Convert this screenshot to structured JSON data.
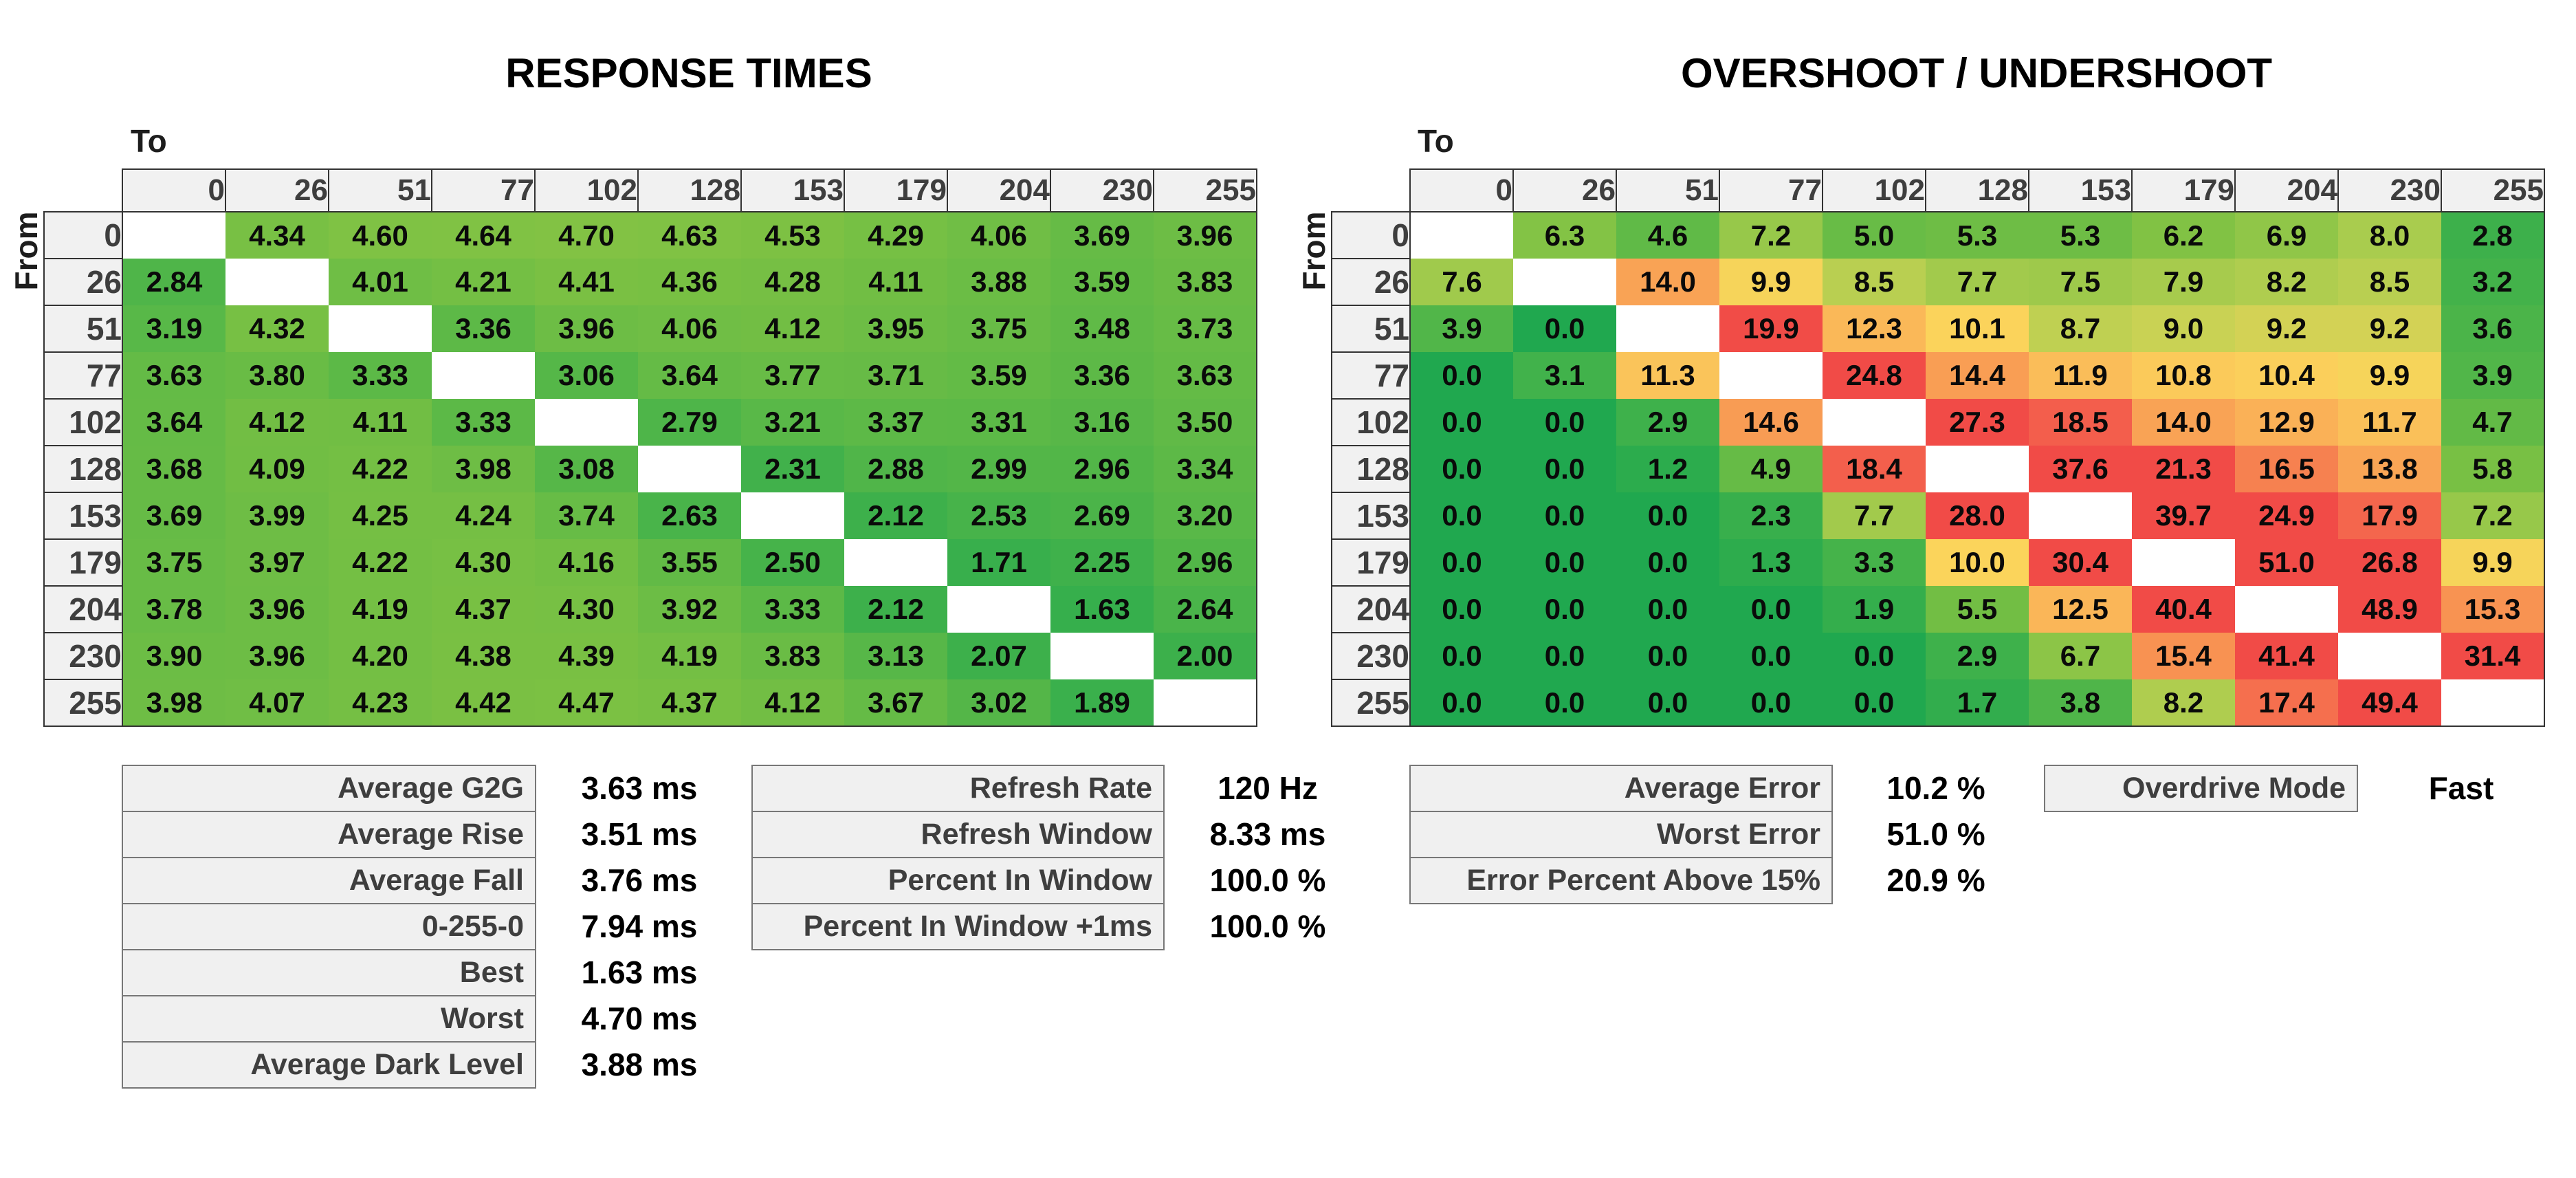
{
  "chart_data": [
    {
      "type": "heatmap",
      "title": "RESPONSE TIMES",
      "to_label": "To",
      "from_label": "From",
      "unit": "ms",
      "levels": [
        "0",
        "26",
        "51",
        "77",
        "102",
        "128",
        "153",
        "179",
        "204",
        "230",
        "255"
      ],
      "values": [
        [
          null,
          "4.34",
          "4.60",
          "4.64",
          "4.70",
          "4.63",
          "4.53",
          "4.29",
          "4.06",
          "3.69",
          "3.96"
        ],
        [
          "2.84",
          null,
          "4.01",
          "4.21",
          "4.41",
          "4.36",
          "4.28",
          "4.11",
          "3.88",
          "3.59",
          "3.83"
        ],
        [
          "3.19",
          "4.32",
          null,
          "3.36",
          "3.96",
          "4.06",
          "4.12",
          "3.95",
          "3.75",
          "3.48",
          "3.73"
        ],
        [
          "3.63",
          "3.80",
          "3.33",
          null,
          "3.06",
          "3.64",
          "3.77",
          "3.71",
          "3.59",
          "3.36",
          "3.63"
        ],
        [
          "3.64",
          "4.12",
          "4.11",
          "3.33",
          null,
          "2.79",
          "3.21",
          "3.37",
          "3.31",
          "3.16",
          "3.50"
        ],
        [
          "3.68",
          "4.09",
          "4.22",
          "3.98",
          "3.08",
          null,
          "2.31",
          "2.88",
          "2.99",
          "2.96",
          "3.34"
        ],
        [
          "3.69",
          "3.99",
          "4.25",
          "4.24",
          "3.74",
          "2.63",
          null,
          "2.12",
          "2.53",
          "2.69",
          "3.20"
        ],
        [
          "3.75",
          "3.97",
          "4.22",
          "4.30",
          "4.16",
          "3.55",
          "2.50",
          null,
          "1.71",
          "2.25",
          "2.96"
        ],
        [
          "3.78",
          "3.96",
          "4.19",
          "4.37",
          "4.30",
          "3.92",
          "3.33",
          "2.12",
          null,
          "1.63",
          "2.64"
        ],
        [
          "3.90",
          "3.96",
          "4.20",
          "4.38",
          "4.39",
          "4.19",
          "3.83",
          "3.13",
          "2.07",
          null,
          "2.00"
        ],
        [
          "3.98",
          "4.07",
          "4.23",
          "4.42",
          "4.47",
          "4.37",
          "4.12",
          "3.67",
          "3.02",
          "1.89",
          null
        ]
      ],
      "color_scale": {
        "domain_max": 15,
        "stops": [
          [
            0.0,
            "#20A84F"
          ],
          [
            0.15,
            "#3FB14B"
          ],
          [
            0.3,
            "#7CC143"
          ],
          [
            0.4,
            "#A9CC4E"
          ],
          [
            0.45,
            "#C9D254"
          ],
          [
            0.5,
            "#FBD45B"
          ],
          [
            0.6,
            "#FABC59"
          ],
          [
            0.7,
            "#F9A355"
          ],
          [
            0.8,
            "#F78A51"
          ],
          [
            0.9,
            "#F4644D"
          ],
          [
            1.0,
            "#F14B47"
          ]
        ]
      }
    },
    {
      "type": "heatmap",
      "title": "OVERSHOOT / UNDERSHOOT",
      "to_label": "To",
      "from_label": "From",
      "unit": "%",
      "levels": [
        "0",
        "26",
        "51",
        "77",
        "102",
        "128",
        "153",
        "179",
        "204",
        "230",
        "255"
      ],
      "values": [
        [
          null,
          "6.3",
          "4.6",
          "7.2",
          "5.0",
          "5.3",
          "5.3",
          "6.2",
          "6.9",
          "8.0",
          "2.8"
        ],
        [
          "7.6",
          null,
          "14.0",
          "9.9",
          "8.5",
          "7.7",
          "7.5",
          "7.9",
          "8.2",
          "8.5",
          "3.2"
        ],
        [
          "3.9",
          "0.0",
          null,
          "19.9",
          "12.3",
          "10.1",
          "8.7",
          "9.0",
          "9.2",
          "9.2",
          "3.6"
        ],
        [
          "0.0",
          "3.1",
          "11.3",
          null,
          "24.8",
          "14.4",
          "11.9",
          "10.8",
          "10.4",
          "9.9",
          "3.9"
        ],
        [
          "0.0",
          "0.0",
          "2.9",
          "14.6",
          null,
          "27.3",
          "18.5",
          "14.0",
          "12.9",
          "11.7",
          "4.7"
        ],
        [
          "0.0",
          "0.0",
          "1.2",
          "4.9",
          "18.4",
          null,
          "37.6",
          "21.3",
          "16.5",
          "13.8",
          "5.8"
        ],
        [
          "0.0",
          "0.0",
          "0.0",
          "2.3",
          "7.7",
          "28.0",
          null,
          "39.7",
          "24.9",
          "17.9",
          "7.2"
        ],
        [
          "0.0",
          "0.0",
          "0.0",
          "1.3",
          "3.3",
          "10.0",
          "30.4",
          null,
          "51.0",
          "26.8",
          "9.9"
        ],
        [
          "0.0",
          "0.0",
          "0.0",
          "0.0",
          "1.9",
          "5.5",
          "12.5",
          "40.4",
          null,
          "48.9",
          "15.3"
        ],
        [
          "0.0",
          "0.0",
          "0.0",
          "0.0",
          "0.0",
          "2.9",
          "6.7",
          "15.4",
          "41.4",
          null,
          "31.4"
        ],
        [
          "0.0",
          "0.0",
          "0.0",
          "0.0",
          "0.0",
          "1.7",
          "3.8",
          "8.2",
          "17.4",
          "49.4",
          null
        ]
      ],
      "color_scale": {
        "domain_max": 20,
        "stops": [
          [
            0.0,
            "#20A84F"
          ],
          [
            0.15,
            "#3FB14B"
          ],
          [
            0.3,
            "#7CC143"
          ],
          [
            0.4,
            "#A9CC4E"
          ],
          [
            0.45,
            "#C9D254"
          ],
          [
            0.5,
            "#FBD45B"
          ],
          [
            0.6,
            "#FABC59"
          ],
          [
            0.7,
            "#F9A355"
          ],
          [
            0.8,
            "#F78A51"
          ],
          [
            0.9,
            "#F4644D"
          ],
          [
            1.0,
            "#F14B47"
          ]
        ]
      }
    }
  ],
  "stats": {
    "response": {
      "rows": [
        {
          "label": "Average G2G",
          "value": "3.63 ms"
        },
        {
          "label": "Average Rise",
          "value": "3.51 ms"
        },
        {
          "label": "Average Fall",
          "value": "3.76 ms"
        },
        {
          "label": "0-255-0",
          "value": "7.94 ms"
        },
        {
          "label": "Best",
          "value": "1.63 ms"
        },
        {
          "label": "Worst",
          "value": "4.70 ms"
        },
        {
          "label": "Average Dark Level",
          "value": "3.88 ms"
        }
      ]
    },
    "refresh": {
      "rows": [
        {
          "label": "Refresh Rate",
          "value": "120 Hz"
        },
        {
          "label": "Refresh Window",
          "value": "8.33 ms"
        },
        {
          "label": "Percent In Window",
          "value": "100.0 %"
        },
        {
          "label": "Percent In Window +1ms",
          "value": "100.0 %"
        }
      ]
    },
    "error": {
      "rows": [
        {
          "label": "Average Error",
          "value": "10.2 %"
        },
        {
          "label": "Worst Error",
          "value": "51.0 %"
        },
        {
          "label": "Error Percent Above 15%",
          "value": "20.9 %"
        }
      ]
    },
    "overdrive": {
      "label": "Overdrive Mode",
      "value": "Fast"
    }
  },
  "colors": {
    "header_bg": "#F1F1F1",
    "header_text": "#3E3E3E",
    "table_border": "#333333",
    "stats_border": "#777777",
    "scale_green": "#20A84F",
    "scale_yellow": "#FBD45B",
    "scale_red": "#F14B47"
  }
}
